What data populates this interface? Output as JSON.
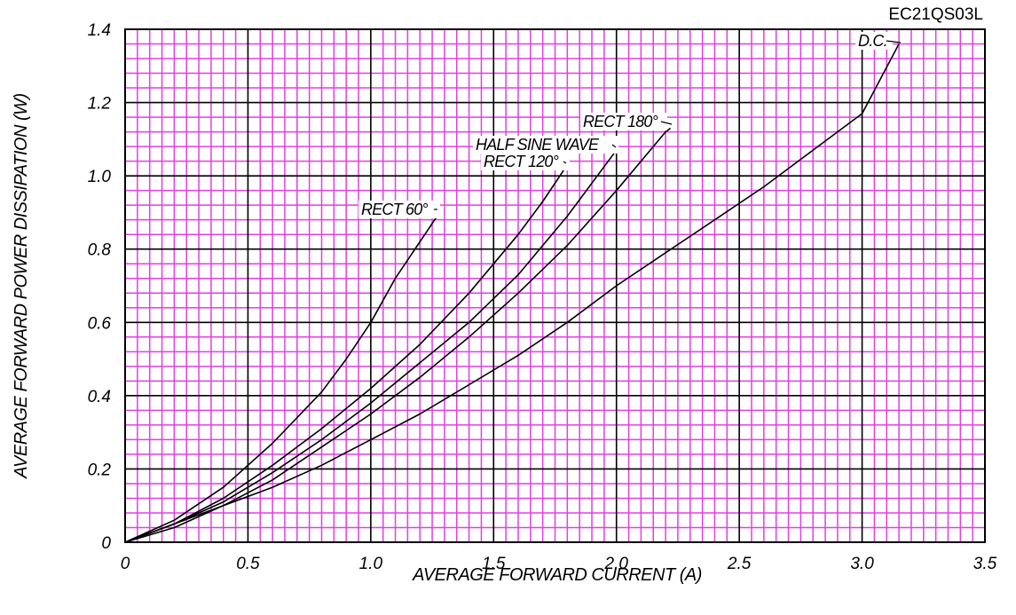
{
  "chart_data": {
    "type": "line",
    "model_label": "EC21QS03L",
    "xlabel": "AVERAGE FORWARD CURRENT (A)",
    "ylabel": "AVERAGE FORWARD POWER DISSIPATION (W)",
    "xlim": [
      0,
      3.5
    ],
    "ylim": [
      0,
      1.4
    ],
    "x_ticks": [
      "0",
      "0.5",
      "1.0",
      "1.5",
      "2.0",
      "2.5",
      "3.0",
      "3.5"
    ],
    "y_ticks": [
      "0",
      "0.2",
      "0.4",
      "0.6",
      "0.8",
      "1.0",
      "1.2",
      "1.4"
    ],
    "grid": true,
    "colors": {
      "major_grid": "#000000",
      "minor_grid": "#e040e0",
      "curve": "#000000"
    },
    "series": [
      {
        "name": "RECT 60°",
        "points": [
          [
            0,
            0
          ],
          [
            0.2,
            0.06
          ],
          [
            0.4,
            0.15
          ],
          [
            0.6,
            0.27
          ],
          [
            0.8,
            0.41
          ],
          [
            0.9,
            0.5
          ],
          [
            1.0,
            0.6
          ],
          [
            1.1,
            0.72
          ],
          [
            1.2,
            0.82
          ],
          [
            1.28,
            0.9
          ]
        ]
      },
      {
        "name": "RECT 120°",
        "points": [
          [
            0,
            0
          ],
          [
            0.2,
            0.05
          ],
          [
            0.4,
            0.12
          ],
          [
            0.6,
            0.21
          ],
          [
            0.8,
            0.31
          ],
          [
            1.0,
            0.42
          ],
          [
            1.2,
            0.54
          ],
          [
            1.4,
            0.68
          ],
          [
            1.6,
            0.84
          ],
          [
            1.7,
            0.93
          ],
          [
            1.8,
            1.03
          ]
        ]
      },
      {
        "name": "HALF SINE WAVE",
        "points": [
          [
            0,
            0
          ],
          [
            0.2,
            0.05
          ],
          [
            0.4,
            0.11
          ],
          [
            0.6,
            0.19
          ],
          [
            0.8,
            0.28
          ],
          [
            1.0,
            0.38
          ],
          [
            1.2,
            0.49
          ],
          [
            1.4,
            0.6
          ],
          [
            1.6,
            0.73
          ],
          [
            1.8,
            0.89
          ],
          [
            2.0,
            1.07
          ]
        ]
      },
      {
        "name": "RECT 180°",
        "points": [
          [
            0,
            0
          ],
          [
            0.2,
            0.04
          ],
          [
            0.4,
            0.1
          ],
          [
            0.6,
            0.17
          ],
          [
            0.8,
            0.26
          ],
          [
            1.0,
            0.35
          ],
          [
            1.2,
            0.45
          ],
          [
            1.4,
            0.56
          ],
          [
            1.6,
            0.68
          ],
          [
            1.8,
            0.81
          ],
          [
            2.0,
            0.96
          ],
          [
            2.2,
            1.12
          ],
          [
            2.22,
            1.13
          ]
        ]
      },
      {
        "name": "D.C.",
        "points": [
          [
            0,
            0
          ],
          [
            0.2,
            0.05
          ],
          [
            0.4,
            0.1
          ],
          [
            0.6,
            0.15
          ],
          [
            0.8,
            0.21
          ],
          [
            1.0,
            0.28
          ],
          [
            1.2,
            0.35
          ],
          [
            1.4,
            0.43
          ],
          [
            1.6,
            0.51
          ],
          [
            1.8,
            0.6
          ],
          [
            2.0,
            0.7
          ],
          [
            2.2,
            0.79
          ],
          [
            2.4,
            0.88
          ],
          [
            2.6,
            0.97
          ],
          [
            2.7,
            1.02
          ],
          [
            2.9,
            1.12
          ],
          [
            3.0,
            1.17
          ],
          [
            3.15,
            1.36
          ]
        ]
      }
    ],
    "annotations": [
      {
        "text": "RECT 60°",
        "series": "RECT 60°"
      },
      {
        "text": "RECT 120°",
        "series": "RECT 120°"
      },
      {
        "text": "HALF SINE WAVE",
        "series": "HALF SINE WAVE"
      },
      {
        "text": "RECT 180°",
        "series": "RECT 180°"
      },
      {
        "text": "D.C.",
        "series": "D.C."
      }
    ]
  }
}
